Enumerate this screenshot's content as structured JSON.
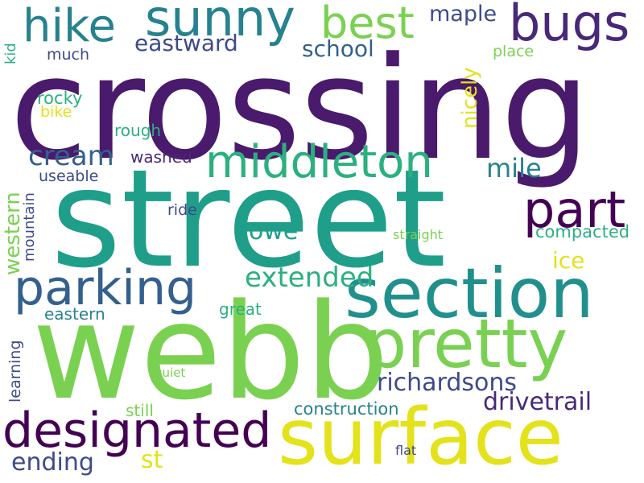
{
  "palette": {
    "dark_purple": "#4a1a6c",
    "indigo": "#3e4a8a",
    "blue": "#33608d",
    "teal": "#1f9e89",
    "green": "#39b86c",
    "light_green": "#7ad151",
    "yellow": "#e3e21b"
  },
  "words": [
    {
      "id": "crossing",
      "text": "crossing",
      "color": "#4a1a6c"
    },
    {
      "id": "street",
      "text": "street",
      "color": "#1f9e89"
    },
    {
      "id": "webb",
      "text": "webb",
      "color": "#7ad151"
    },
    {
      "id": "surface",
      "text": "surface",
      "color": "#e3e21b"
    },
    {
      "id": "section",
      "text": "section",
      "color": "#21908d"
    },
    {
      "id": "pretty",
      "text": "pretty",
      "color": "#7ad151"
    },
    {
      "id": "parking",
      "text": "parking",
      "color": "#33608d"
    },
    {
      "id": "designated",
      "text": "designated",
      "color": "#440154"
    },
    {
      "id": "middleton",
      "text": "middleton",
      "color": "#2bb07f"
    },
    {
      "id": "part",
      "text": "part",
      "color": "#440154"
    },
    {
      "id": "sunny",
      "text": "sunny",
      "color": "#26828e"
    },
    {
      "id": "bugs",
      "text": "bugs",
      "color": "#482878"
    },
    {
      "id": "hike",
      "text": "hike",
      "color": "#26828e"
    },
    {
      "id": "best",
      "text": "best",
      "color": "#7ad151"
    },
    {
      "id": "cream",
      "text": "cream",
      "color": "#33608d"
    },
    {
      "id": "richardsons",
      "text": "richardsons",
      "color": "#3e4a8a"
    },
    {
      "id": "drivetrail",
      "text": "drivetrail",
      "color": "#482878"
    },
    {
      "id": "mile",
      "text": "mile",
      "color": "#26828e"
    },
    {
      "id": "eastward",
      "text": "eastward",
      "color": "#3e4a8a"
    },
    {
      "id": "maple",
      "text": "maple",
      "color": "#3e4a8a"
    },
    {
      "id": "school",
      "text": "school",
      "color": "#33608d"
    },
    {
      "id": "nicely",
      "text": "nicely",
      "color": "#e3e21b"
    },
    {
      "id": "ending",
      "text": "ending",
      "color": "#3e4a8a"
    },
    {
      "id": "extended",
      "text": "extended",
      "color": "#2bb07f"
    },
    {
      "id": "howe",
      "text": "howe",
      "color": "#1f9e89"
    },
    {
      "id": "ice",
      "text": "ice",
      "color": "#e3e21b"
    },
    {
      "id": "st",
      "text": "st",
      "color": "#e3e21b"
    },
    {
      "id": "western",
      "text": "western",
      "color": "#7ad151"
    },
    {
      "id": "construction",
      "text": "construction",
      "color": "#26828e"
    },
    {
      "id": "compacted",
      "text": "compacted",
      "color": "#2bb07f"
    },
    {
      "id": "rocky",
      "text": "rocky",
      "color": "#2bb07f"
    },
    {
      "id": "bike",
      "text": "bike",
      "color": "#e3e21b"
    },
    {
      "id": "much",
      "text": "much",
      "color": "#3e4a8a"
    },
    {
      "id": "kid",
      "text": "kid",
      "color": "#2bb07f"
    },
    {
      "id": "place",
      "text": "place",
      "color": "#7ad151"
    },
    {
      "id": "rough",
      "text": "rough",
      "color": "#2bb07f"
    },
    {
      "id": "washed",
      "text": "washed",
      "color": "#482878"
    },
    {
      "id": "useable",
      "text": "useable",
      "color": "#3e4a8a"
    },
    {
      "id": "mountain",
      "text": "mountain",
      "color": "#3e4a8a"
    },
    {
      "id": "ride",
      "text": "ride",
      "color": "#3e4a8a"
    },
    {
      "id": "straight",
      "text": "straight",
      "color": "#7ad151"
    },
    {
      "id": "great",
      "text": "great",
      "color": "#2bb07f"
    },
    {
      "id": "eastern",
      "text": "eastern",
      "color": "#26828e"
    },
    {
      "id": "learning",
      "text": "learning",
      "color": "#3e4a8a"
    },
    {
      "id": "quiet",
      "text": "quiet",
      "color": "#7ad151"
    },
    {
      "id": "still",
      "text": "still",
      "color": "#7ad151"
    },
    {
      "id": "flat",
      "text": "flat",
      "color": "#3e4a8a"
    }
  ]
}
